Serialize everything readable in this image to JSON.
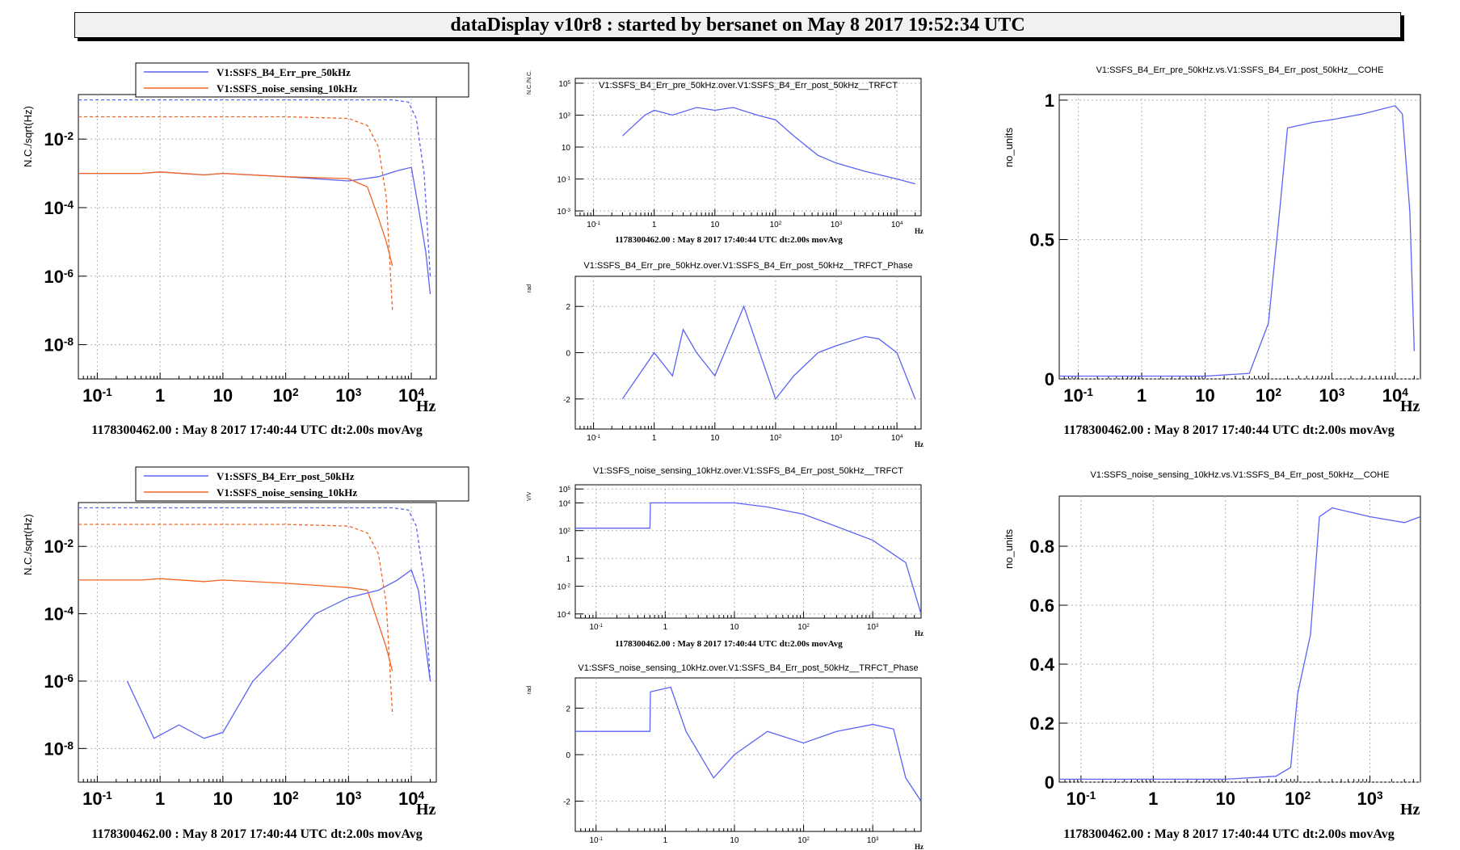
{
  "header": {
    "title": "dataDisplay v10r8 : started by bersanet on May  8 2017 19:52:34 UTC"
  },
  "colors": {
    "blue": "#5c63f5",
    "orange": "#f26522",
    "grid": "#b0b0b0"
  },
  "chart_data": [
    {
      "id": "asd-top",
      "type": "line",
      "ylabel": "N.C./sqrt(Hz)",
      "xlabel": "Hz",
      "xlog": true,
      "ylog": true,
      "xlim": [
        0.05,
        25000
      ],
      "ylim": [
        1e-09,
        0.2
      ],
      "x_ticks": [
        "10-1",
        "1",
        "10",
        "102",
        "103",
        "104"
      ],
      "y_ticks": [
        "10-2",
        "10-4",
        "10-6",
        "10-8"
      ],
      "grid": true,
      "legend": [
        "V1:SSFS_B4_Err_pre_50kHz",
        "V1:SSFS_noise_sensing_10kHz"
      ],
      "footer": "1178300462.00 : May  8 2017 17:40:44 UTC dt:2.00s movAvg",
      "series": [
        {
          "name": "V1:SSFS_B4_Err_pre_50kHz",
          "color": "#5c63f5",
          "x": [
            0.05,
            0.5,
            1,
            5,
            10,
            100,
            1000,
            3000,
            6000,
            10000,
            13000,
            17000,
            20000
          ],
          "y": [
            0.001,
            0.001,
            0.0011,
            0.0009,
            0.001,
            0.0008,
            0.0006,
            0.0008,
            0.0012,
            0.0015,
            0.0001,
            5e-06,
            3e-07
          ]
        },
        {
          "name": "V1:SSFS_noise_sensing_10kHz",
          "color": "#f26522",
          "x": [
            0.05,
            0.5,
            1,
            5,
            10,
            100,
            1000,
            2000,
            3000,
            4000,
            5000
          ],
          "y": [
            0.001,
            0.001,
            0.0011,
            0.0009,
            0.001,
            0.0008,
            0.0007,
            0.0004,
            5e-05,
            1e-05,
            2e-06
          ]
        },
        {
          "name": "",
          "color": "#5c63f5",
          "x": [
            0.05,
            0.1,
            1,
            100,
            1000,
            5000,
            9000,
            12000,
            16000,
            20000
          ],
          "y": [
            0.14,
            0.14,
            0.14,
            0.14,
            0.14,
            0.14,
            0.12,
            0.04,
            0.001,
            1e-06
          ]
        },
        {
          "name": "",
          "color": "#f26522",
          "x": [
            0.05,
            0.1,
            1,
            100,
            1000,
            2000,
            3000,
            4000,
            5000
          ],
          "y": [
            0.045,
            0.045,
            0.045,
            0.045,
            0.04,
            0.025,
            0.006,
            0.0002,
            1e-07
          ]
        }
      ]
    },
    {
      "id": "trf-top",
      "type": "line",
      "title": "V1:SSFS_B4_Err_pre_50kHz.over.V1:SSFS_B4_Err_post_50kHz__TRFCT",
      "ylabel": "N.C./N.C.",
      "xlabel": "Hz",
      "xlog": true,
      "ylog": true,
      "xlim": [
        0.05,
        25000
      ],
      "ylim": [
        0.0005,
        200000
      ],
      "x_ticks": [
        "10-1",
        "1",
        "10",
        "102",
        "103",
        "104"
      ],
      "y_ticks": [
        "105",
        "103",
        "10",
        "10-1",
        "10-3"
      ],
      "grid": true,
      "footer": "1178300462.00 : May  8 2017 17:40:44 UTC dt:2.00s movAvg",
      "series": [
        {
          "name": "",
          "color": "#5c63f5",
          "x": [
            0.3,
            0.7,
            1,
            2,
            5,
            10,
            20,
            50,
            100,
            200,
            500,
            1000,
            3000,
            10000,
            20000
          ],
          "y": [
            50,
            1000,
            2000,
            1000,
            3000,
            2000,
            3000,
            1000,
            500,
            50,
            3,
            1,
            0.3,
            0.1,
            0.05
          ]
        }
      ]
    },
    {
      "id": "phase-top",
      "type": "line",
      "title": "V1:SSFS_B4_Err_pre_50kHz.over.V1:SSFS_B4_Err_post_50kHz__TRFCT_Phase",
      "ylabel": "rad",
      "xlabel": "Hz",
      "xlog": true,
      "ylog": false,
      "xlim": [
        0.05,
        25000
      ],
      "ylim": [
        -3.3,
        3.3
      ],
      "x_ticks": [
        "10-1",
        "1",
        "10",
        "102",
        "103",
        "104"
      ],
      "y_ticks": [
        "2",
        "0",
        "-2"
      ],
      "grid": true,
      "series": [
        {
          "name": "",
          "color": "#5c63f5",
          "x": [
            0.3,
            1,
            2,
            3,
            5,
            10,
            30,
            100,
            200,
            500,
            1000,
            3000,
            5000,
            10000,
            20000
          ],
          "y": [
            -2,
            0,
            -1,
            1,
            0,
            -1,
            2,
            -2,
            -1,
            0,
            0.3,
            0.7,
            0.6,
            0,
            -2
          ]
        }
      ]
    },
    {
      "id": "cohe-top",
      "type": "line",
      "title": "V1:SSFS_B4_Err_pre_50kHz.vs.V1:SSFS_B4_Err_post_50kHz__COHE",
      "ylabel": "no_units",
      "xlabel": "Hz",
      "xlog": true,
      "ylog": false,
      "xlim": [
        0.05,
        25000
      ],
      "ylim": [
        0,
        1.02
      ],
      "x_ticks": [
        "10-1",
        "1",
        "10",
        "102",
        "103",
        "104"
      ],
      "y_ticks": [
        "1",
        "0.5",
        "0"
      ],
      "grid": true,
      "footer": "1178300462.00 : May  8 2017 17:40:44 UTC dt:2.00s movAvg",
      "series": [
        {
          "name": "",
          "color": "#5c63f5",
          "x": [
            0.05,
            10,
            50,
            100,
            150,
            200,
            500,
            1000,
            3000,
            10000,
            13000,
            17000,
            20000
          ],
          "y": [
            0.01,
            0.01,
            0.02,
            0.2,
            0.6,
            0.9,
            0.92,
            0.93,
            0.95,
            0.98,
            0.95,
            0.6,
            0.1
          ]
        }
      ]
    },
    {
      "id": "asd-bottom",
      "type": "line",
      "ylabel": "N.C./sqrt(Hz)",
      "xlabel": "Hz",
      "xlog": true,
      "ylog": true,
      "xlim": [
        0.05,
        25000
      ],
      "ylim": [
        1e-09,
        0.2
      ],
      "x_ticks": [
        "10-1",
        "1",
        "10",
        "102",
        "103",
        "104"
      ],
      "y_ticks": [
        "10-2",
        "10-4",
        "10-6",
        "10-8"
      ],
      "grid": true,
      "legend": [
        "V1:SSFS_B4_Err_post_50kHz",
        "V1:SSFS_noise_sensing_10kHz"
      ],
      "footer": "1178300462.00 : May  8 2017 17:40:44 UTC dt:2.00s movAvg",
      "series": [
        {
          "name": "V1:SSFS_B4_Err_post_50kHz",
          "color": "#5c63f5",
          "x": [
            0.3,
            0.8,
            2,
            5,
            10,
            30,
            100,
            300,
            1000,
            3000,
            6000,
            10000,
            13000,
            17000,
            20000
          ],
          "y": [
            1e-06,
            2e-08,
            5e-08,
            2e-08,
            3e-08,
            1e-06,
            1e-05,
            0.0001,
            0.0003,
            0.0005,
            0.001,
            0.002,
            0.0005,
            1e-05,
            1e-06
          ]
        },
        {
          "name": "V1:SSFS_noise_sensing_10kHz",
          "color": "#f26522",
          "x": [
            0.05,
            0.5,
            1,
            5,
            10,
            100,
            1000,
            2000,
            3000,
            4000,
            5000
          ],
          "y": [
            0.001,
            0.001,
            0.0011,
            0.0009,
            0.001,
            0.0008,
            0.0006,
            0.0005,
            5e-05,
            1e-05,
            2e-06
          ]
        },
        {
          "name": "",
          "color": "#5c63f5",
          "x": [
            0.05,
            0.1,
            1,
            100,
            1000,
            5000,
            9000,
            12000,
            16000,
            20000
          ],
          "y": [
            0.14,
            0.14,
            0.14,
            0.14,
            0.14,
            0.14,
            0.12,
            0.04,
            0.001,
            1e-06
          ]
        },
        {
          "name": "",
          "color": "#f26522",
          "x": [
            0.05,
            0.1,
            1,
            100,
            1000,
            2000,
            3000,
            4000,
            5000
          ],
          "y": [
            0.045,
            0.045,
            0.045,
            0.045,
            0.04,
            0.025,
            0.006,
            0.0002,
            1e-07
          ]
        }
      ]
    },
    {
      "id": "trf-bottom",
      "type": "line",
      "title": "V1:SSFS_noise_sensing_10kHz.over.V1:SSFS_B4_Err_post_50kHz__TRFCT",
      "ylabel": "V/V",
      "xlabel": "Hz",
      "xlog": true,
      "ylog": true,
      "xlim": [
        0.05,
        5000
      ],
      "ylim": [
        5e-05,
        200000
      ],
      "x_ticks": [
        "10-1",
        "1",
        "10",
        "102",
        "103"
      ],
      "y_ticks": [
        "105",
        "104",
        "102",
        "1",
        "10-2",
        "10-4"
      ],
      "grid": true,
      "footer": "1178300462.00 : May  8 2017 17:40:44 UTC dt:2.00s movAvg",
      "series": [
        {
          "name": "",
          "color": "#5c63f5",
          "x": [
            0.05,
            0.6,
            0.61,
            1,
            3,
            10,
            30,
            100,
            300,
            1000,
            3000,
            5000
          ],
          "y": [
            150,
            150,
            10000,
            10000,
            10000,
            10000,
            5000,
            1500,
            200,
            20,
            0.5,
            0.0001
          ]
        }
      ]
    },
    {
      "id": "phase-bottom",
      "type": "line",
      "title": "V1:SSFS_noise_sensing_10kHz.over.V1:SSFS_B4_Err_post_50kHz__TRFCT_Phase",
      "ylabel": "rad",
      "xlabel": "Hz",
      "xlog": true,
      "ylog": false,
      "xlim": [
        0.05,
        5000
      ],
      "ylim": [
        -3.3,
        3.3
      ],
      "x_ticks": [
        "10-1",
        "1",
        "10",
        "102",
        "103"
      ],
      "y_ticks": [
        "2",
        "0",
        "-2"
      ],
      "grid": true,
      "series": [
        {
          "name": "",
          "color": "#5c63f5",
          "x": [
            0.05,
            0.6,
            0.61,
            1.2,
            2,
            5,
            10,
            30,
            100,
            300,
            1000,
            2000,
            3000,
            5000
          ],
          "y": [
            1,
            1,
            2.7,
            2.9,
            1,
            -1,
            0,
            1,
            0.5,
            1,
            1.3,
            1.1,
            -1,
            -2
          ]
        }
      ]
    },
    {
      "id": "cohe-bottom",
      "type": "line",
      "title": "V1:SSFS_noise_sensing_10kHz.vs.V1:SSFS_B4_Err_post_50kHz__COHE",
      "ylabel": "no_units",
      "xlabel": "Hz",
      "xlog": true,
      "ylog": false,
      "xlim": [
        0.05,
        5000
      ],
      "ylim": [
        0,
        0.97
      ],
      "x_ticks": [
        "10-1",
        "1",
        "10",
        "102",
        "103"
      ],
      "y_ticks": [
        "0.8",
        "0.6",
        "0.4",
        "0.2",
        "0"
      ],
      "grid": true,
      "footer": "1178300462.00 : May  8 2017 17:40:44 UTC dt:2.00s movAvg",
      "series": [
        {
          "name": "",
          "color": "#5c63f5",
          "x": [
            0.05,
            10,
            50,
            80,
            100,
            150,
            200,
            300,
            1000,
            3000,
            5000
          ],
          "y": [
            0.01,
            0.01,
            0.02,
            0.05,
            0.3,
            0.5,
            0.9,
            0.93,
            0.9,
            0.88,
            0.9
          ]
        }
      ]
    }
  ]
}
